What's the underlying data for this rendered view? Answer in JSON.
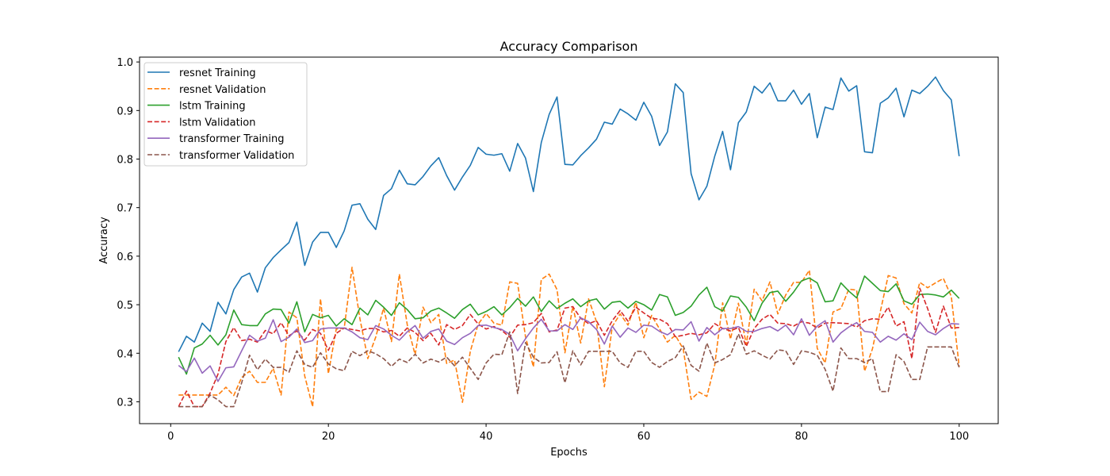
{
  "chart_data": {
    "type": "line",
    "title": "Accuracy Comparison",
    "xlabel": "Epochs",
    "ylabel": "Accuracy",
    "xlim": [
      -3.95,
      104.95
    ],
    "ylim": [
      0.255,
      1.01
    ],
    "xticks": [
      0,
      20,
      40,
      60,
      80,
      100
    ],
    "yticks": [
      0.3,
      0.4,
      0.5,
      0.6,
      0.7,
      0.8,
      0.9,
      1.0
    ],
    "ytick_labels": [
      "0.3",
      "0.4",
      "0.5",
      "0.6",
      "0.7",
      "0.8",
      "0.9",
      "1.0"
    ],
    "grid": false,
    "legend_position": "top-left",
    "x": [
      1,
      2,
      3,
      4,
      5,
      6,
      7,
      8,
      9,
      10,
      11,
      12,
      13,
      14,
      15,
      16,
      17,
      18,
      19,
      20,
      21,
      22,
      23,
      24,
      25,
      26,
      27,
      28,
      29,
      30,
      31,
      32,
      33,
      34,
      35,
      36,
      37,
      38,
      39,
      40,
      41,
      42,
      43,
      44,
      45,
      46,
      47,
      48,
      49,
      50,
      51,
      52,
      53,
      54,
      55,
      56,
      57,
      58,
      59,
      60,
      61,
      62,
      63,
      64,
      65,
      66,
      67,
      68,
      69,
      70,
      71,
      72,
      73,
      74,
      75,
      76,
      77,
      78,
      79,
      80,
      81,
      82,
      83,
      84,
      85,
      86,
      87,
      88,
      89,
      90,
      91,
      92,
      93,
      94,
      95,
      96,
      97,
      98,
      99,
      100
    ],
    "series": [
      {
        "name": "resnet Training",
        "color": "#1f77b4",
        "dash": "solid",
        "values": [
          0.403,
          0.435,
          0.423,
          0.462,
          0.445,
          0.505,
          0.481,
          0.531,
          0.557,
          0.565,
          0.526,
          0.576,
          0.597,
          0.613,
          0.628,
          0.67,
          0.581,
          0.629,
          0.649,
          0.649,
          0.618,
          0.652,
          0.705,
          0.708,
          0.676,
          0.655,
          0.725,
          0.739,
          0.777,
          0.749,
          0.747,
          0.764,
          0.786,
          0.803,
          0.766,
          0.736,
          0.763,
          0.787,
          0.824,
          0.81,
          0.808,
          0.811,
          0.775,
          0.832,
          0.802,
          0.733,
          0.834,
          0.892,
          0.928,
          0.789,
          0.788,
          0.807,
          0.823,
          0.841,
          0.876,
          0.872,
          0.903,
          0.893,
          0.88,
          0.917,
          0.888,
          0.828,
          0.856,
          0.955,
          0.937,
          0.77,
          0.716,
          0.744,
          0.806,
          0.857,
          0.778,
          0.875,
          0.897,
          0.95,
          0.936,
          0.957,
          0.92,
          0.92,
          0.942,
          0.913,
          0.935,
          0.844,
          0.907,
          0.902,
          0.967,
          0.94,
          0.951,
          0.815,
          0.813,
          0.915,
          0.926,
          0.946,
          0.887,
          0.942,
          0.935,
          0.95,
          0.969,
          0.941,
          0.922,
          0.806
        ]
      },
      {
        "name": "resnet Validation",
        "color": "#ff7f0e",
        "dash": "dashed",
        "values": [
          0.314,
          0.314,
          0.314,
          0.314,
          0.314,
          0.314,
          0.33,
          0.313,
          0.35,
          0.363,
          0.34,
          0.34,
          0.369,
          0.314,
          0.485,
          0.473,
          0.353,
          0.29,
          0.512,
          0.358,
          0.45,
          0.451,
          0.577,
          0.471,
          0.389,
          0.433,
          0.493,
          0.424,
          0.563,
          0.459,
          0.397,
          0.495,
          0.463,
          0.48,
          0.379,
          0.386,
          0.299,
          0.404,
          0.46,
          0.482,
          0.462,
          0.458,
          0.547,
          0.544,
          0.434,
          0.372,
          0.552,
          0.563,
          0.531,
          0.401,
          0.497,
          0.421,
          0.512,
          0.465,
          0.331,
          0.455,
          0.481,
          0.458,
          0.505,
          0.432,
          0.478,
          0.45,
          0.423,
          0.437,
          0.409,
          0.305,
          0.32,
          0.311,
          0.376,
          0.504,
          0.429,
          0.503,
          0.418,
          0.532,
          0.508,
          0.547,
          0.481,
          0.52,
          0.546,
          0.546,
          0.571,
          0.41,
          0.38,
          0.485,
          0.492,
          0.532,
          0.53,
          0.363,
          0.409,
          0.486,
          0.56,
          0.555,
          0.502,
          0.483,
          0.546,
          0.535,
          0.545,
          0.554,
          0.517,
          0.373
        ]
      },
      {
        "name": "lstm Training",
        "color": "#2ca02c",
        "dash": "solid",
        "values": [
          0.392,
          0.357,
          0.411,
          0.419,
          0.437,
          0.417,
          0.438,
          0.489,
          0.459,
          0.457,
          0.457,
          0.481,
          0.491,
          0.49,
          0.462,
          0.506,
          0.444,
          0.48,
          0.473,
          0.478,
          0.456,
          0.471,
          0.459,
          0.493,
          0.479,
          0.509,
          0.495,
          0.478,
          0.504,
          0.49,
          0.471,
          0.473,
          0.487,
          0.493,
          0.483,
          0.472,
          0.49,
          0.501,
          0.479,
          0.486,
          0.496,
          0.479,
          0.494,
          0.513,
          0.497,
          0.516,
          0.486,
          0.508,
          0.492,
          0.503,
          0.512,
          0.496,
          0.508,
          0.512,
          0.491,
          0.505,
          0.507,
          0.493,
          0.507,
          0.5,
          0.489,
          0.521,
          0.516,
          0.478,
          0.484,
          0.497,
          0.52,
          0.536,
          0.496,
          0.487,
          0.518,
          0.515,
          0.495,
          0.467,
          0.503,
          0.525,
          0.528,
          0.507,
          0.526,
          0.549,
          0.555,
          0.545,
          0.506,
          0.508,
          0.545,
          0.528,
          0.514,
          0.559,
          0.544,
          0.529,
          0.527,
          0.543,
          0.508,
          0.501,
          0.521,
          0.522,
          0.52,
          0.516,
          0.53,
          0.513
        ]
      },
      {
        "name": "lstm Validation",
        "color": "#d62728",
        "dash": "dashed",
        "values": [
          0.29,
          0.322,
          0.29,
          0.29,
          0.318,
          0.357,
          0.424,
          0.453,
          0.426,
          0.429,
          0.423,
          0.447,
          0.44,
          0.463,
          0.436,
          0.446,
          0.427,
          0.449,
          0.441,
          0.406,
          0.441,
          0.452,
          0.449,
          0.446,
          0.451,
          0.451,
          0.444,
          0.447,
          0.435,
          0.452,
          0.443,
          0.426,
          0.441,
          0.417,
          0.459,
          0.449,
          0.457,
          0.48,
          0.46,
          0.45,
          0.455,
          0.447,
          0.433,
          0.458,
          0.459,
          0.463,
          0.482,
          0.444,
          0.448,
          0.493,
          0.496,
          0.472,
          0.461,
          0.467,
          0.437,
          0.467,
          0.488,
          0.466,
          0.495,
          0.483,
          0.472,
          0.47,
          0.461,
          0.434,
          0.437,
          0.441,
          0.438,
          0.442,
          0.461,
          0.451,
          0.446,
          0.453,
          0.414,
          0.451,
          0.47,
          0.48,
          0.462,
          0.461,
          0.456,
          0.465,
          0.462,
          0.452,
          0.462,
          0.463,
          0.462,
          0.461,
          0.454,
          0.467,
          0.471,
          0.47,
          0.495,
          0.456,
          0.465,
          0.389,
          0.534,
          0.492,
          0.443,
          0.497,
          0.452,
          0.453
        ]
      },
      {
        "name": "transformer Training",
        "color": "#9467bd",
        "dash": "solid",
        "values": [
          0.375,
          0.362,
          0.39,
          0.359,
          0.374,
          0.342,
          0.37,
          0.372,
          0.405,
          0.437,
          0.425,
          0.431,
          0.469,
          0.424,
          0.433,
          0.45,
          0.422,
          0.426,
          0.45,
          0.452,
          0.452,
          0.452,
          0.444,
          0.432,
          0.428,
          0.457,
          0.45,
          0.437,
          0.427,
          0.444,
          0.457,
          0.431,
          0.445,
          0.45,
          0.425,
          0.418,
          0.432,
          0.441,
          0.457,
          0.458,
          0.453,
          0.449,
          0.439,
          0.405,
          0.43,
          0.452,
          0.47,
          0.446,
          0.446,
          0.459,
          0.449,
          0.473,
          0.465,
          0.449,
          0.419,
          0.456,
          0.433,
          0.452,
          0.443,
          0.458,
          0.456,
          0.445,
          0.438,
          0.449,
          0.448,
          0.465,
          0.425,
          0.453,
          0.438,
          0.451,
          0.451,
          0.455,
          0.445,
          0.445,
          0.451,
          0.455,
          0.446,
          0.458,
          0.438,
          0.471,
          0.437,
          0.456,
          0.467,
          0.423,
          0.442,
          0.454,
          0.463,
          0.445,
          0.443,
          0.423,
          0.435,
          0.427,
          0.44,
          0.428,
          0.464,
          0.445,
          0.438,
          0.451,
          0.461,
          0.46
        ]
      },
      {
        "name": "transformer Validation",
        "color": "#8c564b",
        "dash": "dashed",
        "values": [
          0.29,
          0.29,
          0.29,
          0.29,
          0.314,
          0.304,
          0.29,
          0.29,
          0.339,
          0.396,
          0.366,
          0.388,
          0.371,
          0.371,
          0.361,
          0.405,
          0.377,
          0.371,
          0.401,
          0.378,
          0.368,
          0.364,
          0.404,
          0.395,
          0.405,
          0.399,
          0.389,
          0.373,
          0.388,
          0.381,
          0.398,
          0.38,
          0.388,
          0.382,
          0.392,
          0.374,
          0.392,
          0.369,
          0.346,
          0.38,
          0.398,
          0.397,
          0.444,
          0.317,
          0.422,
          0.392,
          0.38,
          0.381,
          0.403,
          0.339,
          0.405,
          0.376,
          0.404,
          0.404,
          0.404,
          0.404,
          0.38,
          0.371,
          0.404,
          0.404,
          0.381,
          0.371,
          0.383,
          0.391,
          0.415,
          0.375,
          0.363,
          0.421,
          0.38,
          0.387,
          0.397,
          0.44,
          0.398,
          0.405,
          0.396,
          0.388,
          0.407,
          0.405,
          0.377,
          0.405,
          0.402,
          0.396,
          0.367,
          0.322,
          0.411,
          0.389,
          0.389,
          0.381,
          0.389,
          0.321,
          0.321,
          0.397,
          0.383,
          0.346,
          0.346,
          0.413,
          0.413,
          0.413,
          0.413,
          0.371
        ]
      }
    ]
  }
}
